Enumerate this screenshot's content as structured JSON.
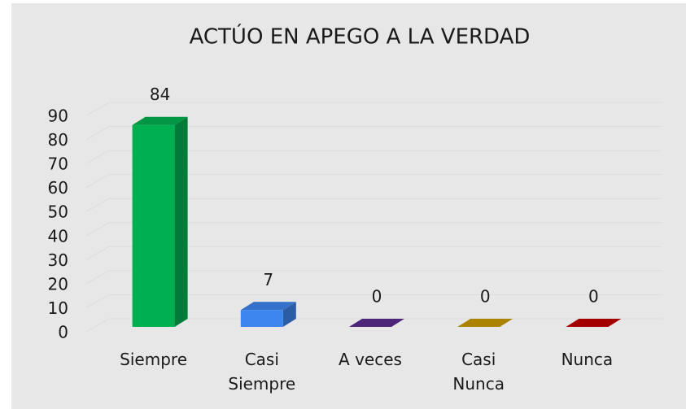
{
  "chart_data": {
    "type": "bar3d",
    "title": "ACTÚO EN APEGO A LA VERDAD",
    "categories": [
      "Siempre",
      "Casi Siempre",
      "A veces",
      "Casi Nunca",
      "Nunca"
    ],
    "values": [
      84,
      7,
      0,
      0,
      0
    ],
    "colors": [
      "#00b050",
      "#3d85ee",
      "#5b2b8e",
      "#c99a00",
      "#c00000"
    ],
    "ylim": [
      0,
      90
    ],
    "yticks": [
      0,
      10,
      20,
      30,
      40,
      50,
      60,
      70,
      80,
      90
    ],
    "grid": true
  }
}
